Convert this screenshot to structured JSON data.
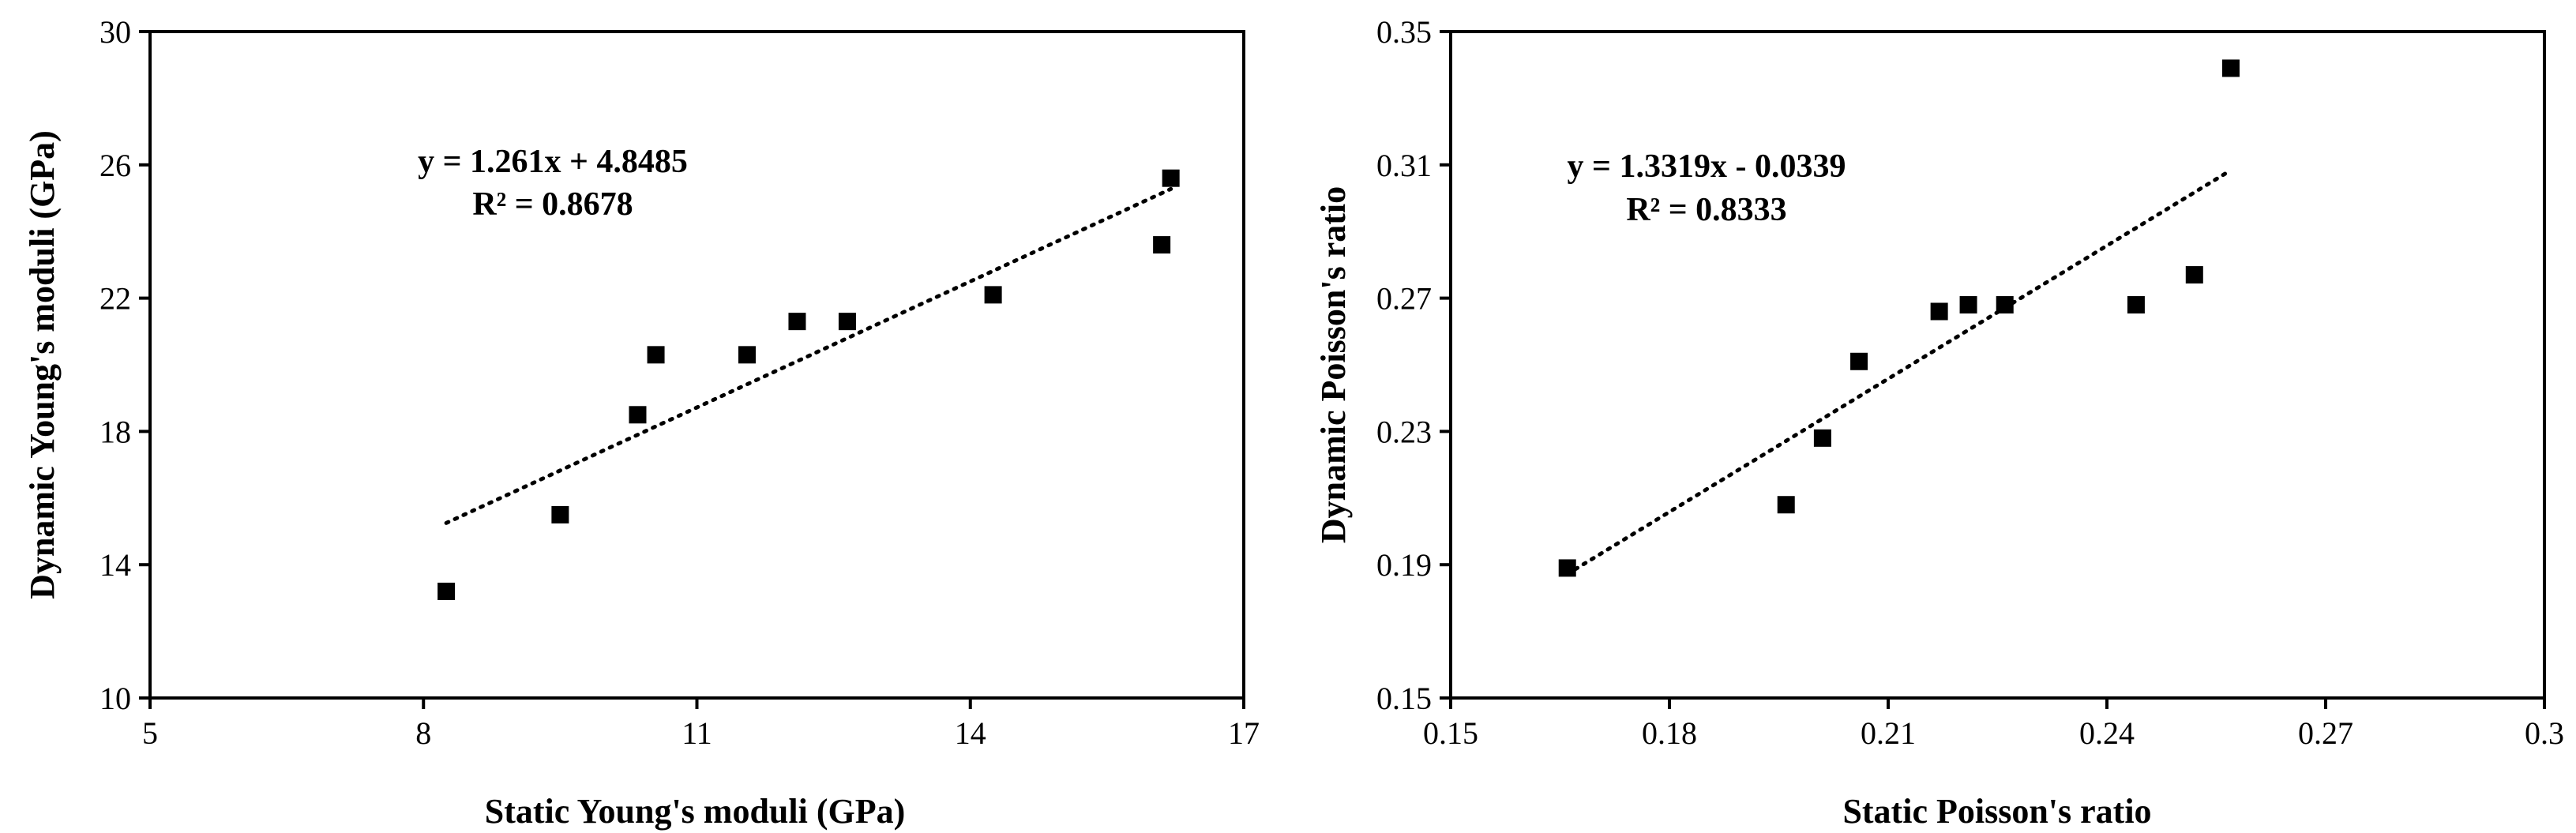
{
  "colors": {
    "marker": "#000000",
    "axis": "#000000",
    "background": "#ffffff"
  },
  "chart_data": [
    {
      "type": "scatter",
      "xlabel": "Static Young's moduli (GPa)",
      "ylabel": "Dynamic Young's moduli (GPa)",
      "xlim": [
        5,
        17
      ],
      "ylim": [
        10,
        30
      ],
      "xticks": [
        5,
        8,
        11,
        14,
        17
      ],
      "yticks": [
        10,
        14,
        18,
        22,
        26,
        30
      ],
      "xtick_labels": [
        "5",
        "8",
        "11",
        "14",
        "17"
      ],
      "ytick_labels": [
        "10",
        "14",
        "18",
        "22",
        "26",
        "30"
      ],
      "series": [
        {
          "name": "Young's moduli",
          "marker": "square",
          "x": [
            8.25,
            9.5,
            10.35,
            10.55,
            11.55,
            12.1,
            12.65,
            14.25,
            16.1,
            16.2
          ],
          "y": [
            13.2,
            15.5,
            18.5,
            20.3,
            20.3,
            21.3,
            21.3,
            22.1,
            23.6,
            25.6
          ]
        }
      ],
      "trendline": {
        "style": "dotted",
        "slope": 1.261,
        "intercept": 4.8485,
        "x_range": [
          8.25,
          16.2
        ]
      },
      "annotations": {
        "equation": "y = 1.261x + 4.8485",
        "r_squared": "R² = 0.8678"
      }
    },
    {
      "type": "scatter",
      "xlabel": "Static Poisson's ratio",
      "ylabel": "Dynamic Poisson's ratio",
      "xlim": [
        0.15,
        0.3
      ],
      "ylim": [
        0.15,
        0.35
      ],
      "xticks": [
        0.15,
        0.18,
        0.21,
        0.24,
        0.27,
        0.3
      ],
      "yticks": [
        0.15,
        0.19,
        0.23,
        0.27,
        0.31,
        0.35
      ],
      "xtick_labels": [
        "0.15",
        "0.18",
        "0.21",
        "0.24",
        "0.27",
        "0.3"
      ],
      "ytick_labels": [
        "0.15",
        "0.19",
        "0.23",
        "0.27",
        "0.31",
        "0.35"
      ],
      "series": [
        {
          "name": "Poisson's ratio",
          "marker": "square",
          "x": [
            0.166,
            0.196,
            0.201,
            0.206,
            0.217,
            0.221,
            0.226,
            0.244,
            0.252,
            0.257
          ],
          "y": [
            0.189,
            0.208,
            0.228,
            0.251,
            0.266,
            0.268,
            0.268,
            0.268,
            0.277,
            0.339
          ]
        }
      ],
      "trendline": {
        "style": "dotted",
        "slope": 1.3319,
        "intercept": -0.0339,
        "x_range": [
          0.166,
          0.257
        ]
      },
      "annotations": {
        "equation": "y = 1.3319x - 0.0339",
        "r_squared": "R² = 0.8333"
      }
    }
  ]
}
